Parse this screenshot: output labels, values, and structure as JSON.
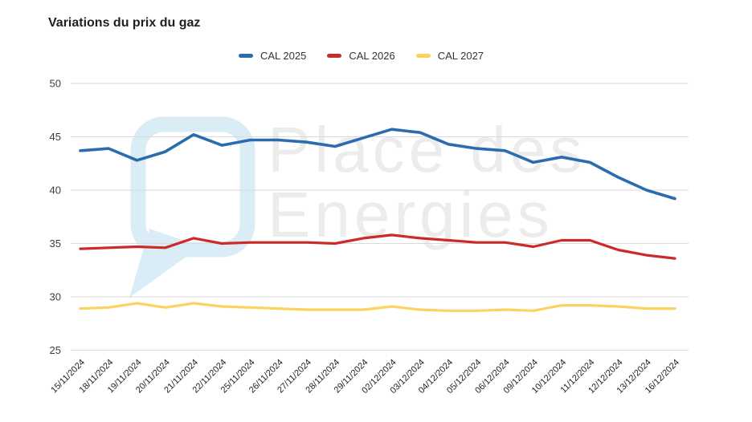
{
  "title": "Variations du prix du gaz",
  "watermark": {
    "line1": "Place des",
    "line2": "Energies"
  },
  "colors": {
    "grid": "#dadada",
    "axis_text": "#3c3c3c",
    "tick_text": "#222222",
    "watermark_bubble": "#daedf6",
    "watermark_text": "#ececec"
  },
  "chart_data": {
    "type": "line",
    "title": "Variations du prix du gaz",
    "xlabel": "",
    "ylabel": "",
    "ylim": [
      25,
      50
    ],
    "yticks": [
      25,
      30,
      35,
      40,
      45,
      50
    ],
    "grid": "horizontal",
    "legend_position": "top",
    "x": [
      "15/11/2024",
      "18/11/2024",
      "19/11/2024",
      "20/11/2024",
      "21/11/2024",
      "22/11/2024",
      "25/11/2024",
      "26/11/2024",
      "27/11/2024",
      "28/11/2024",
      "29/11/2024",
      "02/12/2024",
      "03/12/2024",
      "04/12/2024",
      "05/12/2024",
      "06/12/2024",
      "09/12/2024",
      "10/12/2024",
      "11/12/2024",
      "12/12/2024",
      "13/12/2024",
      "16/12/2024"
    ],
    "series": [
      {
        "name": "CAL 2025",
        "color": "#2b6cae",
        "values": [
          43.7,
          43.9,
          42.8,
          43.6,
          45.2,
          44.2,
          44.7,
          44.7,
          44.5,
          44.1,
          44.9,
          45.7,
          45.4,
          44.3,
          43.9,
          43.7,
          42.6,
          43.1,
          42.6,
          41.2,
          40.0,
          39.2
        ]
      },
      {
        "name": "CAL 2026",
        "color": "#cc2a2a",
        "values": [
          34.5,
          34.6,
          34.7,
          34.6,
          35.5,
          35.0,
          35.1,
          35.1,
          35.1,
          35.0,
          35.5,
          35.8,
          35.5,
          35.3,
          35.1,
          35.1,
          34.7,
          35.3,
          35.3,
          34.4,
          33.9,
          33.6
        ]
      },
      {
        "name": "CAL 2027",
        "color": "#fbd35e",
        "values": [
          28.9,
          29.0,
          29.4,
          29.0,
          29.4,
          29.1,
          29.0,
          28.9,
          28.8,
          28.8,
          28.8,
          29.1,
          28.8,
          28.7,
          28.7,
          28.8,
          28.7,
          29.2,
          29.2,
          29.1,
          28.9,
          28.9
        ]
      }
    ]
  }
}
